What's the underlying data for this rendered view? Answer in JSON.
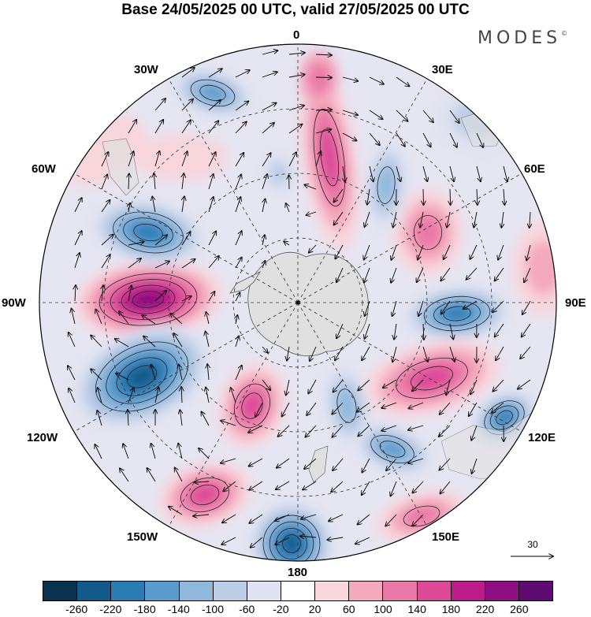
{
  "header": {
    "title": "Base 24/05/2025 00 UTC, valid 27/05/2025 00 UTC",
    "brand": "MODES",
    "brand_mark": "©"
  },
  "map": {
    "projection": "south polar stereographic",
    "longitude_labels": {
      "lon_0": "0",
      "lon_30E": "30E",
      "lon_60E": "60E",
      "lon_90E": "90E",
      "lon_120E": "120E",
      "lon_150E": "150E",
      "lon_180": "180",
      "lon_150W": "150W",
      "lon_120W": "120W",
      "lon_90W": "90W",
      "lon_60W": "60W",
      "lon_30W": "30W"
    },
    "reference_vector": "30",
    "field_type": "anomaly with wind vectors",
    "land_color": "#e0e0e0"
  },
  "colorbar": {
    "colors": [
      "#08324f",
      "#125a8a",
      "#2a7cb5",
      "#5a9ccd",
      "#8fb8dc",
      "#bccde6",
      "#dfe2f0",
      "#ffffff",
      "#f8d6dc",
      "#f4a9be",
      "#ea78a6",
      "#dd4a97",
      "#bd1a8a",
      "#8f0f82",
      "#5e0c72"
    ],
    "tick_labels": [
      "-260",
      "-220",
      "-180",
      "-140",
      "-100",
      "-60",
      "-20",
      "20",
      "60",
      "100",
      "140",
      "180",
      "220",
      "260"
    ]
  }
}
